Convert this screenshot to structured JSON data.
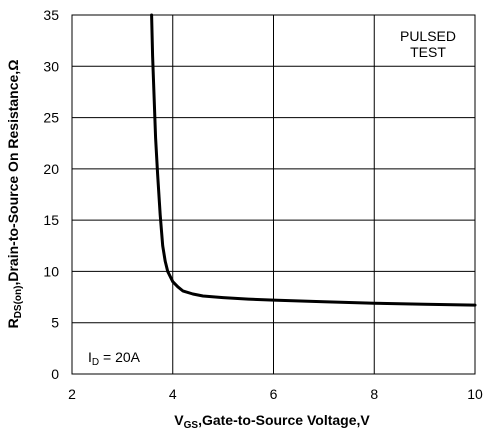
{
  "chart_data": {
    "type": "line",
    "xlabel": {
      "prefix": "V",
      "subscript": "GS",
      "rest": ",Gate-to-Source Voltage,V"
    },
    "ylabel": {
      "prefix": "R",
      "subscript": "DS(on)",
      "rest": ",Drain-to-Source On Resistance,Ω"
    },
    "xlim": [
      2,
      10
    ],
    "ylim": [
      0,
      35
    ],
    "x_ticks": [
      2,
      4,
      6,
      8,
      10
    ],
    "y_ticks": [
      0,
      5,
      10,
      15,
      20,
      25,
      30,
      35
    ],
    "grid": true,
    "annotations": {
      "test_line1": "PULSED",
      "test_line2": "TEST",
      "condition_prefix": "I",
      "condition_subscript": "D",
      "condition_rest": " = 20A"
    },
    "series": [
      {
        "x": [
          3.58,
          3.6,
          3.63,
          3.66,
          3.7,
          3.75,
          3.8,
          3.85,
          3.9,
          4.0,
          4.1,
          4.2,
          4.4,
          4.6,
          5.0,
          5.5,
          6.0,
          7.0,
          8.0,
          9.0,
          10.0
        ],
        "values": [
          35,
          31,
          27,
          23,
          19.5,
          15.5,
          12.5,
          11,
          10,
          9,
          8.5,
          8.1,
          7.8,
          7.6,
          7.45,
          7.3,
          7.2,
          7.05,
          6.9,
          6.8,
          6.72
        ]
      }
    ]
  }
}
